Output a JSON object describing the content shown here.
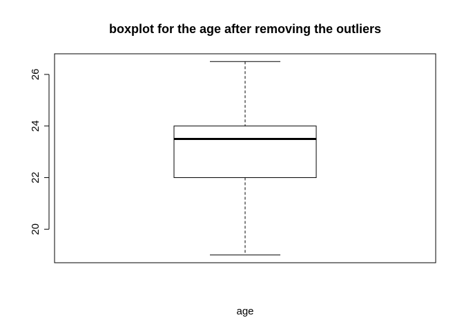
{
  "chart_data": {
    "type": "boxplot",
    "title": "boxplot for the age after removing the outliers",
    "xlabel": "age",
    "ylabel": "",
    "ylim": [
      18.7,
      26.8
    ],
    "yticks": [
      20,
      22,
      24,
      26
    ],
    "ytick_labels": [
      "20",
      "22",
      "24",
      "26"
    ],
    "grid": false,
    "box": {
      "whisker_low": 19,
      "q1": 22,
      "median": 23.5,
      "q3": 24,
      "whisker_high": 26.5
    }
  }
}
